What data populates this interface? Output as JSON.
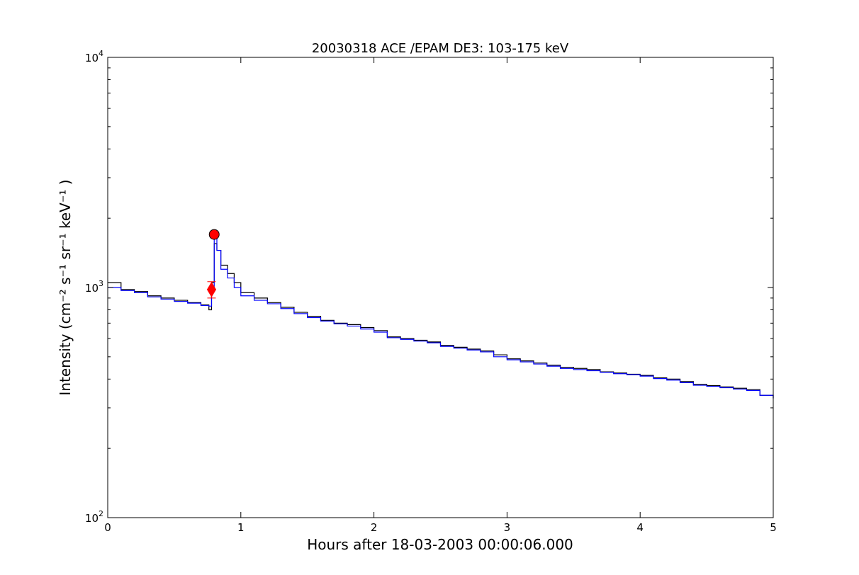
{
  "chart_data": {
    "type": "line",
    "title": "20030318 ACE /EPAM DE3: 103-175 keV",
    "xlabel": "Hours after 18-03-2003 00:00:06.000",
    "ylabel": "Intensity (cm⁻² s⁻¹ sr⁻¹ keV⁻¹ )",
    "xlim": [
      0,
      5
    ],
    "ylim": [
      100,
      10000
    ],
    "yscale": "log",
    "grid": false,
    "legend": "none",
    "x_ticks": [
      "0",
      "1",
      "2",
      "3",
      "4",
      "5"
    ],
    "y_ticks": [
      {
        "value": 100,
        "base": "10",
        "exp": "2"
      },
      {
        "value": 1000,
        "base": "10",
        "exp": "3"
      },
      {
        "value": 10000,
        "base": "10",
        "exp": "4"
      }
    ],
    "series": [
      {
        "color": "#000000",
        "style": "step",
        "x": [
          0.0,
          0.1,
          0.2,
          0.3,
          0.4,
          0.5,
          0.6,
          0.7,
          0.76,
          0.78,
          0.8,
          0.82,
          0.85,
          0.9,
          0.95,
          1.0,
          1.1,
          1.2,
          1.3,
          1.4,
          1.5,
          1.6,
          1.7,
          1.8,
          1.9,
          2.0,
          2.1,
          2.2,
          2.3,
          2.4,
          2.5,
          2.6,
          2.7,
          2.8,
          2.9,
          3.0,
          3.1,
          3.2,
          3.3,
          3.4,
          3.5,
          3.6,
          3.7,
          3.8,
          3.9,
          4.0,
          4.1,
          4.2,
          4.3,
          4.4,
          4.5,
          4.6,
          4.7,
          4.8,
          4.9,
          5.0
        ],
        "values": [
          1050,
          980,
          960,
          920,
          900,
          880,
          860,
          840,
          800,
          1050,
          1550,
          1450,
          1250,
          1150,
          1050,
          950,
          900,
          860,
          820,
          780,
          750,
          720,
          700,
          690,
          670,
          650,
          610,
          600,
          590,
          580,
          560,
          550,
          540,
          530,
          510,
          490,
          480,
          470,
          460,
          450,
          445,
          440,
          430,
          425,
          420,
          415,
          405,
          400,
          390,
          380,
          375,
          370,
          365,
          360,
          340,
          330
        ]
      },
      {
        "color": "#0000ff",
        "style": "step",
        "x": [
          0.0,
          0.1,
          0.2,
          0.3,
          0.4,
          0.5,
          0.6,
          0.7,
          0.76,
          0.78,
          0.8,
          0.82,
          0.85,
          0.9,
          0.95,
          1.0,
          1.1,
          1.2,
          1.3,
          1.4,
          1.5,
          1.6,
          1.7,
          1.8,
          1.9,
          2.0,
          2.1,
          2.2,
          2.3,
          2.4,
          2.5,
          2.6,
          2.7,
          2.8,
          2.9,
          3.0,
          3.1,
          3.2,
          3.3,
          3.4,
          3.5,
          3.6,
          3.7,
          3.8,
          3.9,
          4.0,
          4.1,
          4.2,
          4.3,
          4.4,
          4.5,
          4.6,
          4.7,
          4.8,
          4.9,
          5.0
        ],
        "values": [
          1000,
          970,
          950,
          910,
          890,
          870,
          855,
          835,
          830,
          1000,
          1650,
          1450,
          1200,
          1100,
          1000,
          920,
          880,
          850,
          810,
          770,
          740,
          715,
          695,
          680,
          660,
          640,
          605,
          595,
          585,
          575,
          555,
          545,
          535,
          525,
          500,
          485,
          475,
          465,
          455,
          445,
          440,
          435,
          428,
          422,
          418,
          412,
          402,
          396,
          386,
          376,
          372,
          367,
          362,
          357,
          340,
          330
        ]
      }
    ],
    "markers": [
      {
        "shape": "circle",
        "color": "#ff0000",
        "x": 0.8,
        "y": 1700
      },
      {
        "shape": "diamond",
        "color": "#ff0000",
        "x": 0.78,
        "y": 980
      }
    ],
    "errorbar": {
      "color": "#ff0000",
      "x": 0.78,
      "low": 900,
      "high": 1060
    }
  }
}
